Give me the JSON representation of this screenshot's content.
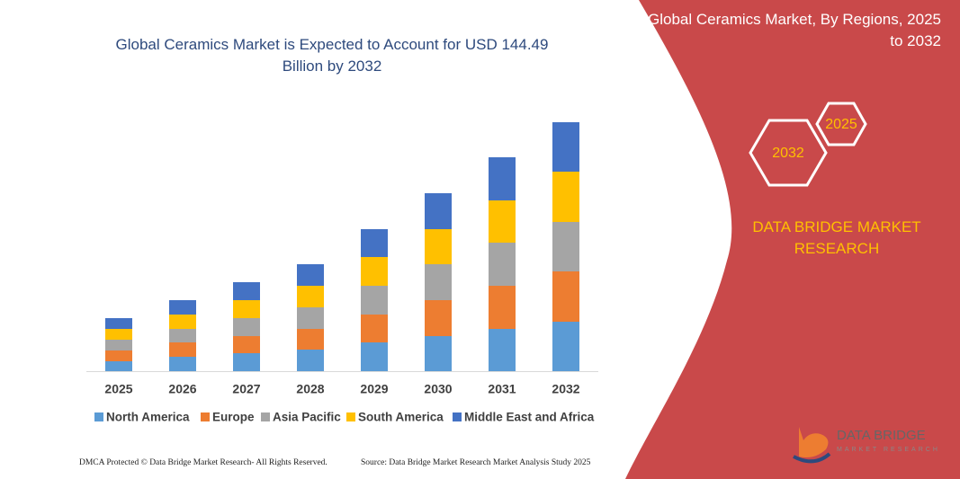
{
  "chart_data": {
    "type": "stacked_bar",
    "title": "Global Ceramics Market is Expected to Account for USD 144.49 Billion by 2032",
    "categories": [
      "2025",
      "2026",
      "2027",
      "2028",
      "2029",
      "2030",
      "2031",
      "2032"
    ],
    "series": [
      {
        "name": "North America",
        "color": "#5b9bd5",
        "values": [
          11,
          16,
          20,
          24,
          32,
          39,
          47,
          55
        ]
      },
      {
        "name": "Europe",
        "color": "#ed7d31",
        "values": [
          12,
          16,
          19,
          23,
          31,
          40,
          48,
          56
        ]
      },
      {
        "name": "Asia Pacific",
        "color": "#a5a5a5",
        "values": [
          12,
          15,
          20,
          24,
          32,
          40,
          48,
          55
        ]
      },
      {
        "name": "South America",
        "color": "#ffc000",
        "values": [
          12,
          16,
          20,
          24,
          32,
          39,
          47,
          56
        ]
      },
      {
        "name": "Middle East and Africa",
        "color": "#4472c4",
        "values": [
          12,
          16,
          20,
          24,
          31,
          40,
          48,
          55
        ]
      }
    ],
    "ylim": [
      0,
      300
    ]
  },
  "panel": {
    "title": "Global Ceramics Market, By Regions, 2025 to 2032",
    "hex_large": "2032",
    "hex_small": "2025",
    "brand": "DATA BRIDGE MARKET RESEARCH"
  },
  "logo": {
    "name": "DATA BRIDGE",
    "tagline": "MARKET RESEARCH"
  },
  "footer": {
    "left": "DMCA Protected © Data Bridge Market Research- All Rights Reserved.",
    "right": "Source: Data Bridge Market Research  Market Analysis Study 2025"
  }
}
